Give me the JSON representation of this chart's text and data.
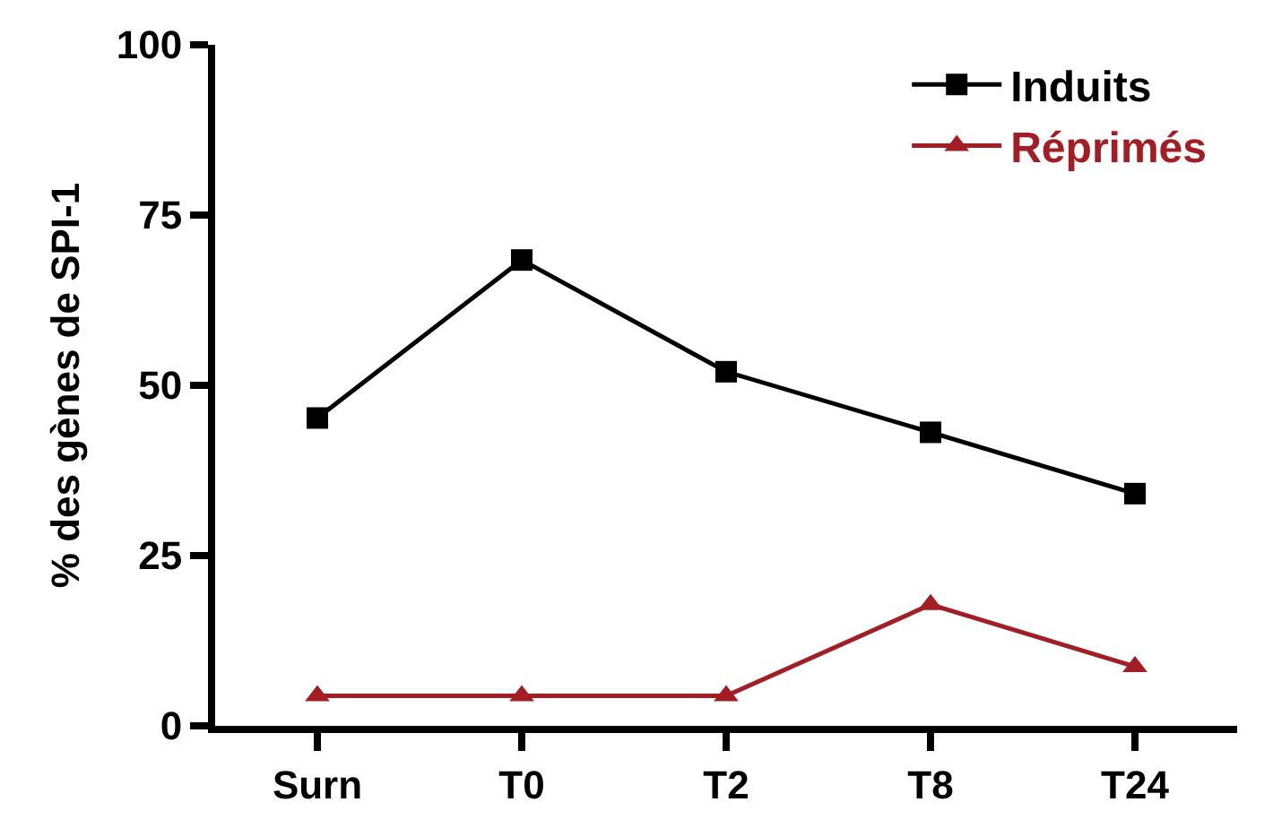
{
  "chart_data": {
    "type": "line",
    "ylabel": "% des gènes de SPI-1",
    "categories": [
      "Surn",
      "T0",
      "T2",
      "T8",
      "T24"
    ],
    "series": [
      {
        "name": "Induits",
        "color": "#000000",
        "marker": "square",
        "values": [
          45.2,
          68.4,
          52.0,
          43.1,
          34.1
        ]
      },
      {
        "name": "Réprimés",
        "color": "#a31d24",
        "marker": "triangle",
        "values": [
          4.4,
          4.4,
          4.4,
          17.8,
          8.7
        ]
      }
    ],
    "ylim": [
      0,
      100
    ],
    "yticks": [
      0,
      25,
      50,
      75,
      100
    ],
    "legend": "top right",
    "line_style": "solid"
  }
}
